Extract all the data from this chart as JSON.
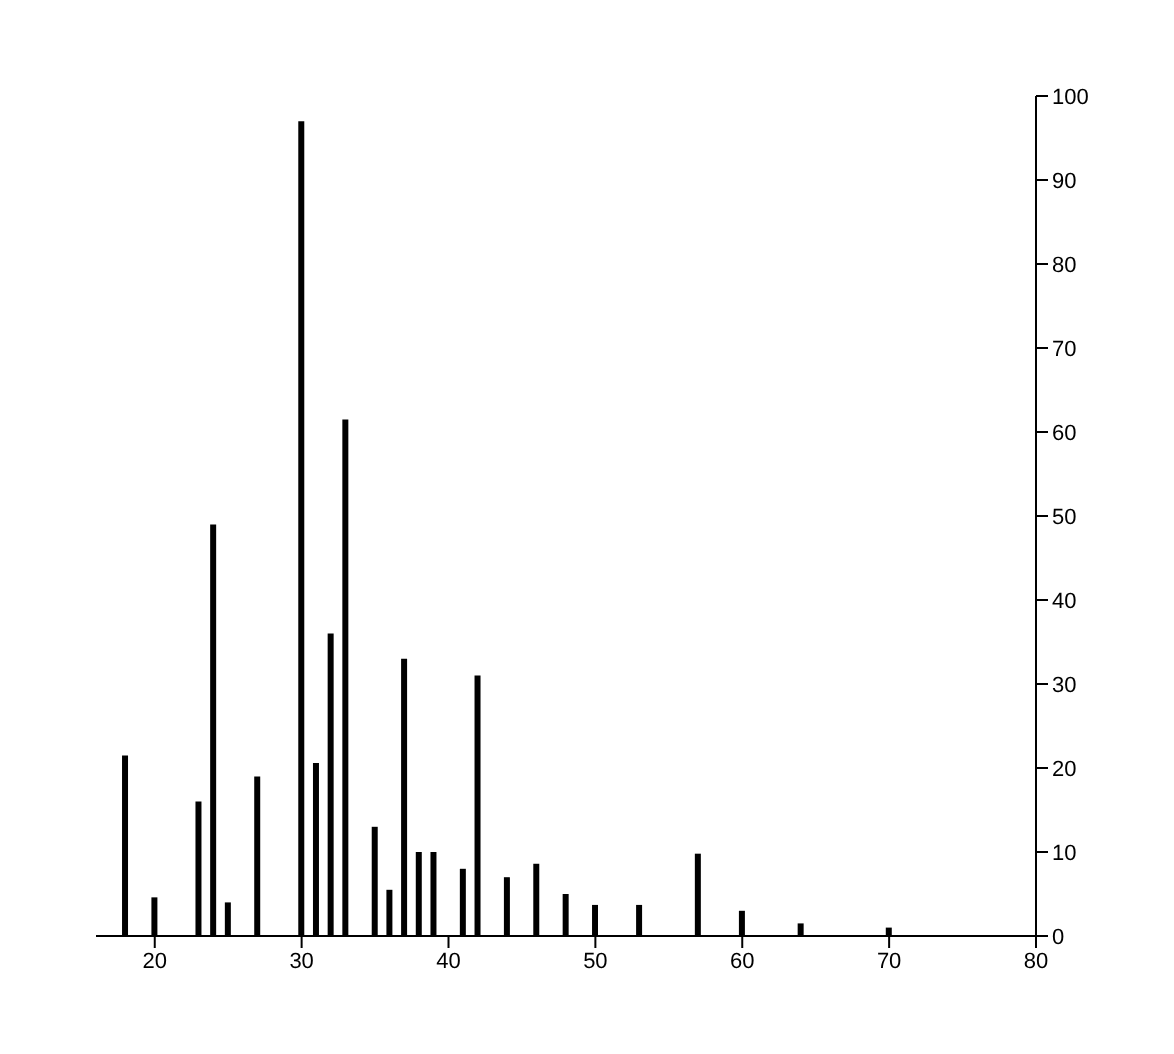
{
  "chart_data": {
    "type": "bar",
    "x": [
      18,
      20,
      23,
      24,
      25,
      27,
      30,
      31,
      32,
      33,
      35,
      36,
      37,
      38,
      39,
      41,
      42,
      44,
      46,
      48,
      50,
      53,
      57,
      60,
      64,
      70
    ],
    "values": [
      21.5,
      4.6,
      16,
      49,
      4,
      19,
      97,
      20.6,
      36,
      61.5,
      13,
      5.5,
      33,
      10,
      10,
      8,
      31,
      7,
      8.6,
      5,
      3.7,
      3.7,
      9.8,
      3,
      1.5,
      1
    ],
    "color": "#000000",
    "xlim": [
      16,
      80
    ],
    "xticks": [
      20,
      30,
      40,
      50,
      60,
      70,
      80
    ],
    "ylim": [
      0,
      100
    ],
    "yticks": [
      0,
      10,
      20,
      30,
      40,
      50,
      60,
      70,
      80,
      90,
      100
    ]
  }
}
